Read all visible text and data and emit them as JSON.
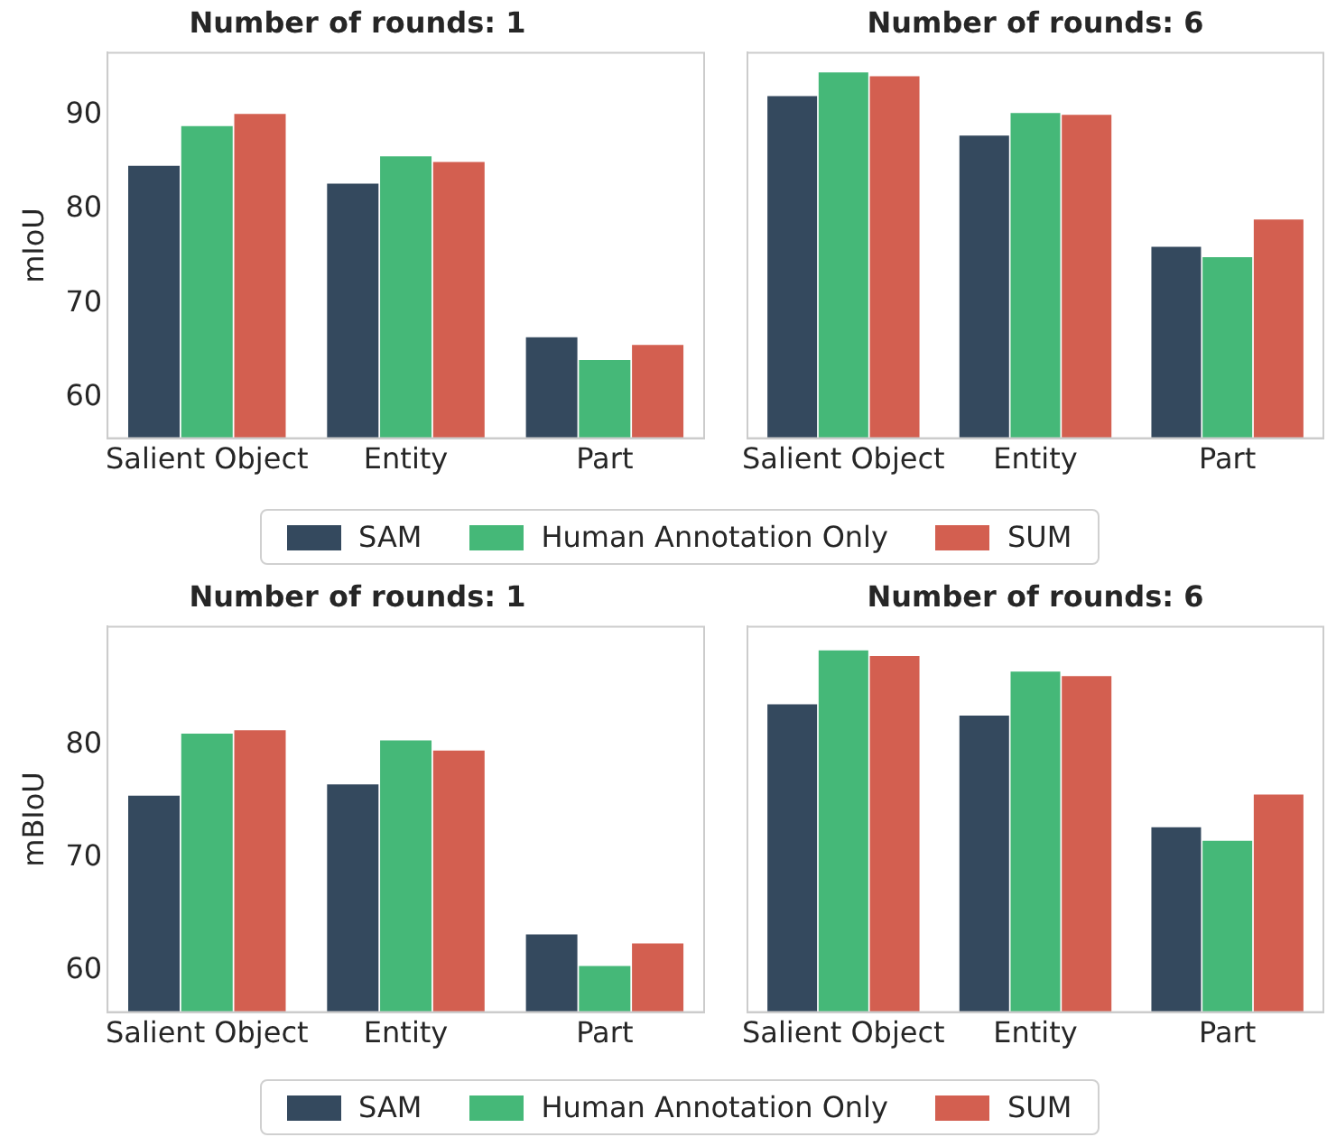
{
  "chart_data": [
    {
      "type": "bar",
      "title": "Number of rounds: 1",
      "ylabel": "mIoU",
      "categories": [
        "Salient Object",
        "Entity",
        "Part"
      ],
      "series": [
        {
          "name": "SAM",
          "color": "#34495e",
          "values": [
            84.6,
            82.7,
            66.4
          ]
        },
        {
          "name": "Human Annotation Only",
          "color": "#45b878",
          "values": [
            88.8,
            85.6,
            64.0
          ]
        },
        {
          "name": "SUM",
          "color": "#d35f50",
          "values": [
            90.1,
            85.0,
            65.6
          ]
        }
      ],
      "ylim": [
        55.7,
        96.6
      ],
      "yticks": [
        60,
        70,
        80,
        90
      ],
      "grid": false,
      "legend": "bottom"
    },
    {
      "type": "bar",
      "title": "Number of rounds: 6",
      "categories": [
        "Salient Object",
        "Entity",
        "Part"
      ],
      "series": [
        {
          "color": "#34495e",
          "values": [
            92.0,
            87.8,
            76.0
          ]
        },
        {
          "color": "#45b878",
          "values": [
            94.5,
            90.2,
            74.9
          ]
        },
        {
          "color": "#d35f50",
          "values": [
            94.1,
            90.0,
            78.9
          ]
        }
      ],
      "ylim": [
        55.7,
        96.6
      ],
      "yticks": [
        60,
        70,
        80,
        90
      ],
      "grid": false,
      "tick_labels": "x"
    },
    {
      "type": "bar",
      "title": "Number of rounds: 1",
      "ylabel": "mBIoU",
      "categories": [
        "Salient Object",
        "Entity",
        "Part"
      ],
      "series": [
        {
          "name": "SAM",
          "color": "#34495e",
          "values": [
            75.5,
            76.5,
            63.2
          ]
        },
        {
          "name": "Human Annotation Only",
          "color": "#45b878",
          "values": [
            81.0,
            80.4,
            60.4
          ]
        },
        {
          "name": "SUM",
          "color": "#d35f50",
          "values": [
            81.3,
            79.5,
            62.4
          ]
        }
      ],
      "ylim": [
        56.3,
        90.5
      ],
      "yticks": [
        60,
        70,
        80
      ],
      "grid": false,
      "legend": "bottom"
    },
    {
      "type": "bar",
      "title": "Number of rounds: 6",
      "categories": [
        "Salient Object",
        "Entity",
        "Part"
      ],
      "series": [
        {
          "color": "#34495e",
          "values": [
            83.6,
            82.6,
            72.7
          ]
        },
        {
          "color": "#45b878",
          "values": [
            88.4,
            86.5,
            71.5
          ]
        },
        {
          "color": "#d35f50",
          "values": [
            87.9,
            86.1,
            75.6
          ]
        }
      ],
      "ylim": [
        56.3,
        90.5
      ],
      "yticks": [
        60,
        70,
        80
      ],
      "grid": false,
      "tick_labels": "x"
    }
  ]
}
